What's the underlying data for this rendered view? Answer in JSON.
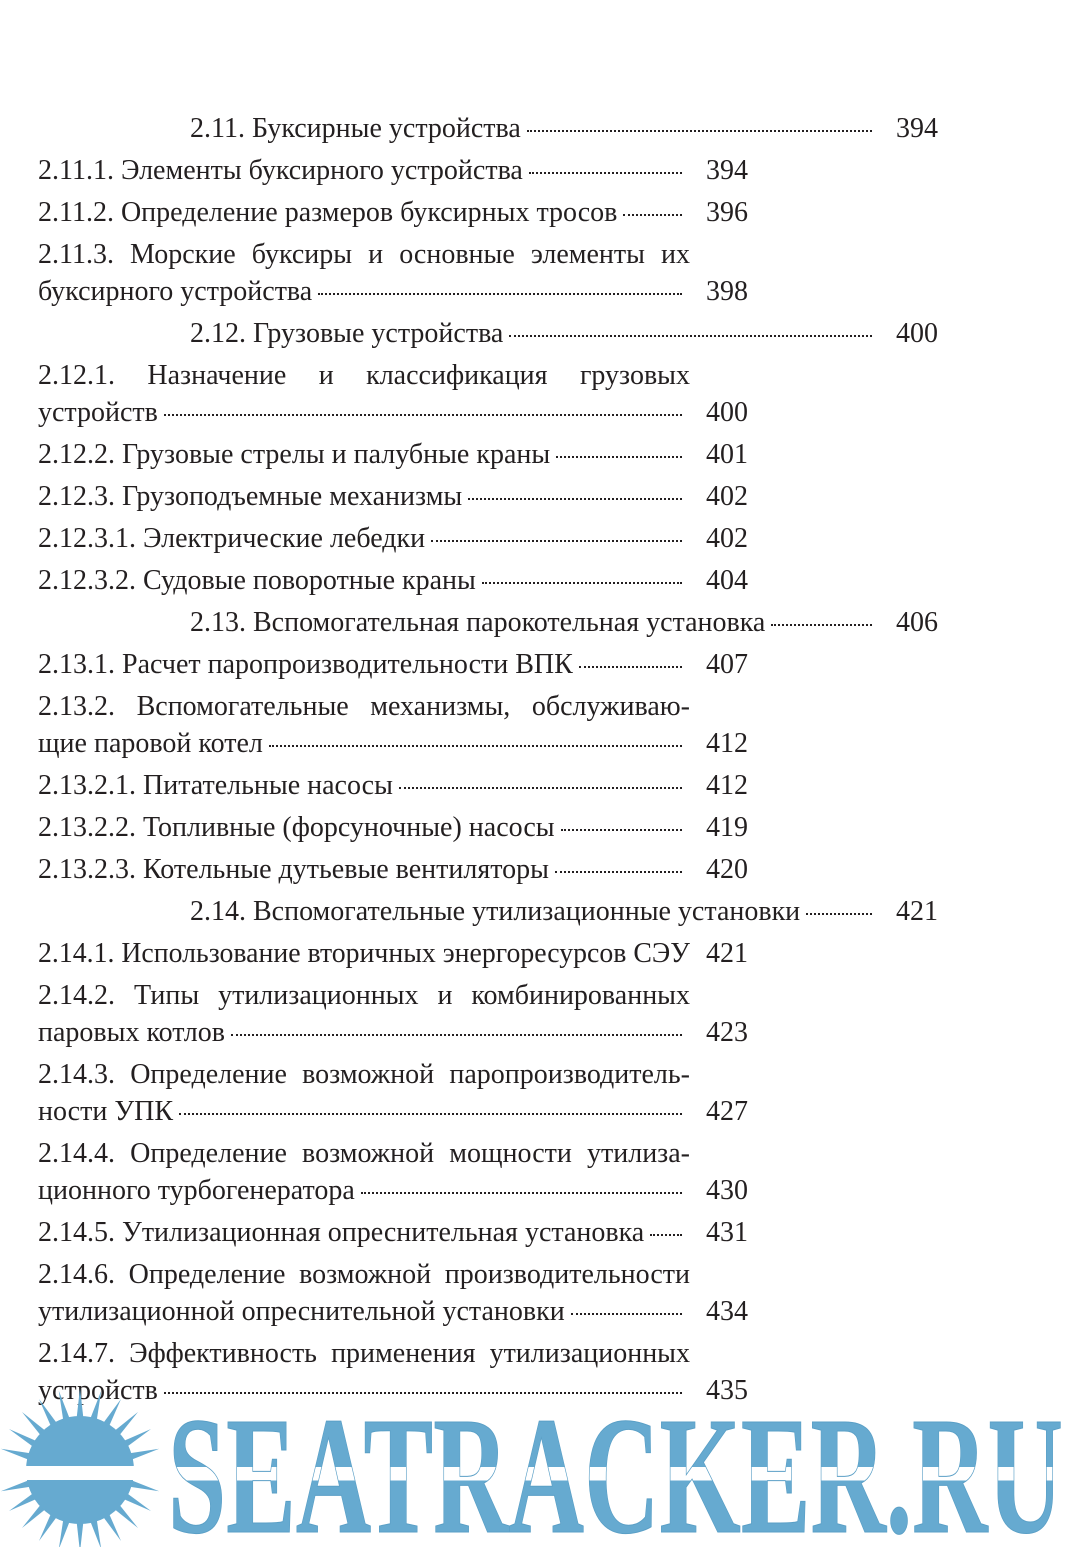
{
  "toc": {
    "sections": [
      {
        "lines": [
          "2.11. Буксирные устройства"
        ],
        "page": 394,
        "children": [
          {
            "lines": [
              "2.11.1. Элементы буксирного устройства"
            ],
            "page": 394
          },
          {
            "lines": [
              "2.11.2. Определение размеров буксирных тросов"
            ],
            "page": 396
          },
          {
            "lines": [
              "2.11.3. Морские буксиры и основные элементы их",
              "буксирного устройства"
            ],
            "page": 398
          }
        ]
      },
      {
        "lines": [
          "2.12. Грузовые устройства"
        ],
        "page": 400,
        "children": [
          {
            "lines": [
              "2.12.1. Назначение и классификация грузовых",
              "устройств"
            ],
            "page": 400
          },
          {
            "lines": [
              "2.12.2. Грузовые стрелы и палубные краны"
            ],
            "page": 401
          },
          {
            "lines": [
              "2.12.3. Грузоподъемные механизмы"
            ],
            "page": 402
          },
          {
            "lines": [
              "2.12.3.1. Электрические лебедки"
            ],
            "page": 402
          },
          {
            "lines": [
              "2.12.3.2. Судовые поворотные краны"
            ],
            "page": 404
          }
        ]
      },
      {
        "lines": [
          "2.13. Вспомогательная парокотельная установка"
        ],
        "page": 406,
        "children": [
          {
            "lines": [
              "2.13.1. Расчет паропроизводительности ВПК"
            ],
            "page": 407
          },
          {
            "lines": [
              "2.13.2. Вспомогательные механизмы, обслуживаю-",
              "щие паровой котел"
            ],
            "page": 412
          },
          {
            "lines": [
              "2.13.2.1. Питательные насосы"
            ],
            "page": 412
          },
          {
            "lines": [
              "2.13.2.2. Топливные (форсуночные) насосы"
            ],
            "page": 419
          },
          {
            "lines": [
              "2.13.2.3. Котельные дутьевые вентиляторы"
            ],
            "page": 420
          }
        ]
      },
      {
        "lines": [
          "2.14. Вспомогательные утилизационные установки"
        ],
        "page": 421,
        "children": [
          {
            "lines": [
              "2.14.1. Использование вторичных энергоресурсов СЭУ"
            ],
            "page": 421
          },
          {
            "lines": [
              "2.14.2. Типы утилизационных и комбинированных",
              "паровых котлов"
            ],
            "page": 423
          },
          {
            "lines": [
              "2.14.3. Определение возможной паропроизводитель-",
              "ности УПК"
            ],
            "page": 427
          },
          {
            "lines": [
              "2.14.4. Определение возможной мощности утилиза-",
              "ционного турбогенератора"
            ],
            "page": 430
          },
          {
            "lines": [
              "2.14.5. Утилизационная опреснительная установка"
            ],
            "page": 431
          },
          {
            "lines": [
              "2.14.6. Определение возможной производительности",
              "утилизационной опреснительной установки"
            ],
            "page": 434
          },
          {
            "lines": [
              "2.14.7. Эффективность применения утилизационных",
              "устройств"
            ],
            "page": 435
          }
        ]
      }
    ]
  },
  "watermark": {
    "text": "SEATRACKER.RU"
  }
}
